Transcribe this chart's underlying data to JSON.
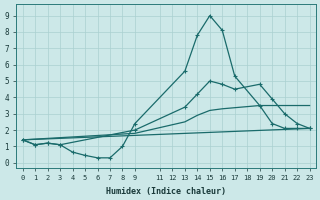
{
  "xlabel": "Humidex (Indice chaleur)",
  "xlim": [
    -0.5,
    23.5
  ],
  "ylim": [
    -0.3,
    9.7
  ],
  "xticks": [
    0,
    1,
    2,
    3,
    4,
    5,
    6,
    7,
    8,
    9,
    11,
    12,
    13,
    14,
    15,
    16,
    17,
    18,
    19,
    20,
    21,
    22,
    23
  ],
  "yticks": [
    0,
    1,
    2,
    3,
    4,
    5,
    6,
    7,
    8,
    9
  ],
  "background_color": "#cce8e8",
  "grid_color": "#aad0d0",
  "line_color": "#1a6b6b",
  "series": [
    {
      "x": [
        0,
        1,
        2,
        3,
        4,
        5,
        6,
        7,
        8,
        9,
        13,
        14,
        15,
        16,
        17,
        19,
        20,
        21,
        22,
        23
      ],
      "y": [
        1.4,
        1.1,
        1.2,
        1.1,
        0.65,
        0.45,
        0.3,
        0.3,
        1.0,
        2.4,
        5.6,
        7.8,
        9.0,
        8.1,
        5.3,
        3.5,
        2.4,
        2.1,
        2.1,
        2.1
      ],
      "marker": true
    },
    {
      "x": [
        0,
        1,
        2,
        3,
        9,
        13,
        14,
        15,
        16,
        17,
        19,
        20,
        21,
        22,
        23
      ],
      "y": [
        1.4,
        1.1,
        1.2,
        1.1,
        2.0,
        3.4,
        4.2,
        5.0,
        4.8,
        4.5,
        4.8,
        3.9,
        3.0,
        2.4,
        2.1
      ],
      "marker": true
    },
    {
      "x": [
        0,
        9,
        13,
        14,
        15,
        16,
        19,
        23
      ],
      "y": [
        1.4,
        1.8,
        2.5,
        2.9,
        3.2,
        3.3,
        3.5,
        3.5
      ],
      "marker": false
    },
    {
      "x": [
        0,
        23
      ],
      "y": [
        1.4,
        2.1
      ],
      "marker": false
    }
  ]
}
